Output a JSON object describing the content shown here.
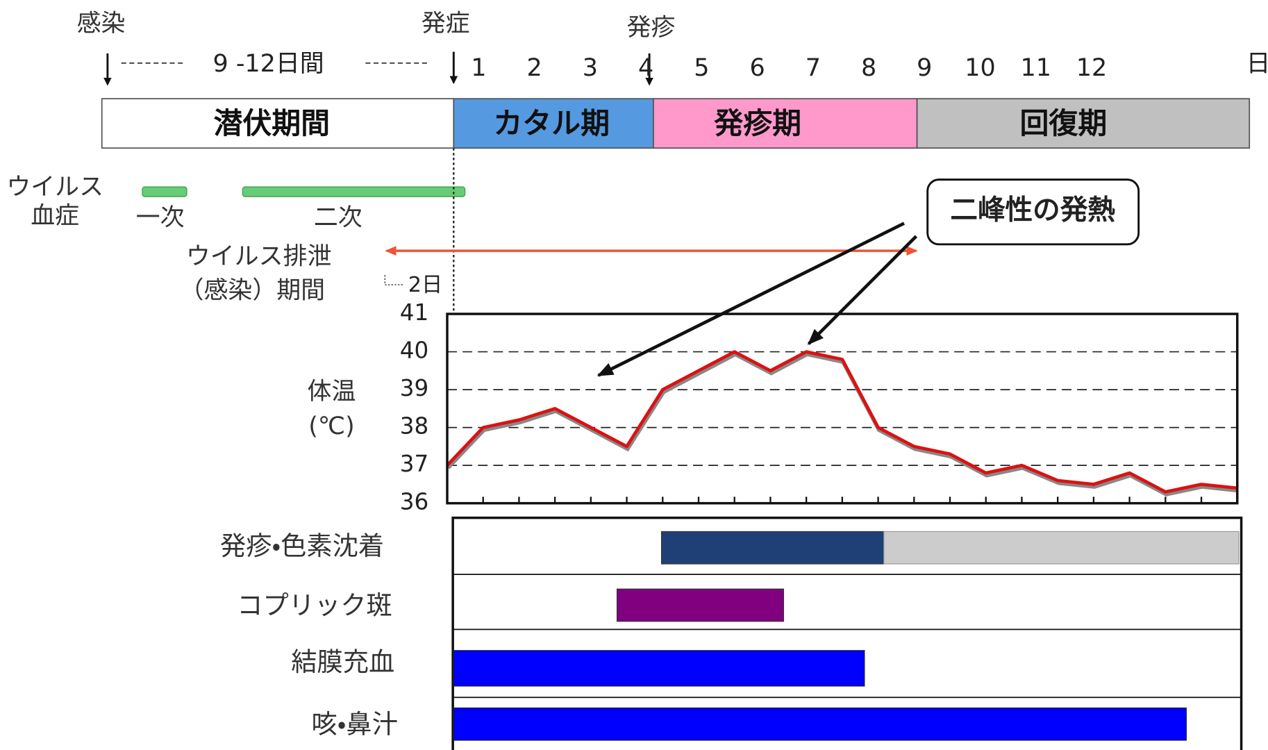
{
  "timeline": {
    "infection": "感染",
    "onset": "発症",
    "rash_onset": "発疹",
    "incubation_span": "9 -12日間",
    "days": [
      1,
      2,
      3,
      4,
      5,
      6,
      7,
      8,
      9,
      10,
      11,
      12
    ],
    "day_unit": "日"
  },
  "phases": [
    "潜伏期間",
    "カタル期",
    "発疹期",
    "回復期"
  ],
  "viremia": {
    "label_line1": "ウイルス",
    "label_line2": "血症",
    "primary": "一次",
    "secondary": "二次"
  },
  "shedding": {
    "label_line1": "ウイルス排泄",
    "label_line2": "（感染）期間",
    "before_onset": "2日"
  },
  "callout": "二峰性の発熱",
  "chart_data": {
    "type": "line",
    "y_label_line1": "体温",
    "y_label_line2": "(℃)",
    "values": [
      37.0,
      38.0,
      38.2,
      38.5,
      38.0,
      37.5,
      39.0,
      39.5,
      40.0,
      39.5,
      40.0,
      39.8,
      38.0,
      37.5,
      37.3,
      36.8,
      37.0,
      36.6,
      36.5,
      36.8,
      36.3,
      36.5,
      36.4
    ],
    "color": "#dd1111",
    "ylim": [
      36,
      41
    ],
    "yticks": [
      36,
      37,
      38,
      39,
      40,
      41
    ],
    "grid": true
  },
  "symptoms": [
    "発疹・色素沈着",
    "コプリック斑",
    "結膜充血",
    "咳・鼻汁"
  ]
}
